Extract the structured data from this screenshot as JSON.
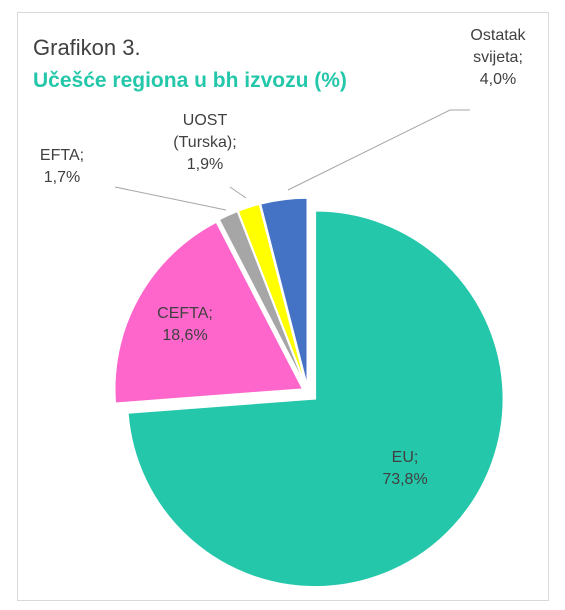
{
  "chart_data": {
    "type": "pie",
    "title": "Grafikon 3.",
    "subtitle": "Učešće regiona u bh izvozu (%)",
    "categories": [
      "EU;",
      "CEFTA;",
      "EFTA;",
      "UOST (Turska);",
      "Ostatak svijeta;"
    ],
    "values": [
      73.8,
      18.6,
      1.7,
      1.9,
      4.0
    ],
    "value_labels": [
      "73,8%",
      "18,6%",
      "1,7%",
      "1,9%",
      "4,0%"
    ],
    "colors": [
      "#25c7aa",
      "#ff66cc",
      "#a6a6a6",
      "#ffff00",
      "#4472c4"
    ]
  }
}
